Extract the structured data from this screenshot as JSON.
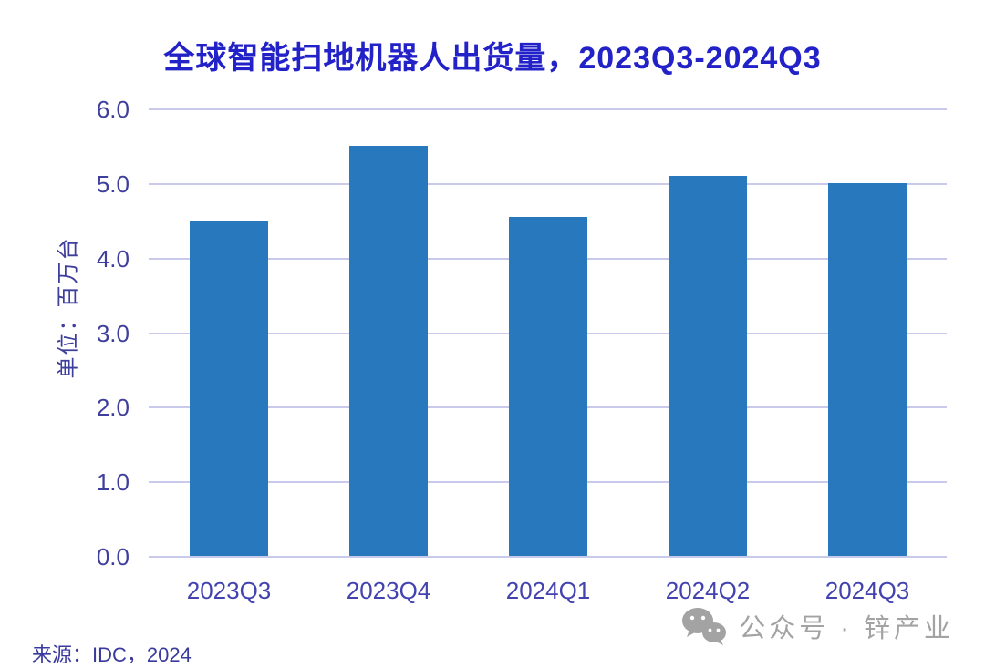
{
  "chart_data": {
    "type": "bar",
    "title": "全球智能扫地机器人出货量，2023Q3-2024Q3",
    "categories": [
      "2023Q3",
      "2023Q4",
      "2024Q1",
      "2024Q2",
      "2024Q3"
    ],
    "values": [
      4.5,
      5.5,
      4.55,
      5.1,
      5.0
    ],
    "xlabel": "",
    "ylabel": "单位：百万台",
    "ylim": [
      0,
      6
    ],
    "ytick_labels": [
      "0.0",
      "1.0",
      "2.0",
      "3.0",
      "4.0",
      "5.0",
      "6.0"
    ],
    "grid": "horizontal",
    "legend": "none",
    "bar_color": "#2878BD",
    "gridline_color": "#C9C9EC"
  },
  "colors": {
    "title": "#2222C8",
    "y_tick": "#3E3E9C",
    "x_tick": "#4343B0",
    "axis_label": "#3E3E9C",
    "source": "#3A3A9E",
    "watermark": "#A3A3A3",
    "background": "#FFFFFF"
  },
  "footer": {
    "source": "来源：IDC，2024"
  },
  "watermark": {
    "icon": "wechat-icon",
    "text": "公众号 · 锌产业"
  }
}
